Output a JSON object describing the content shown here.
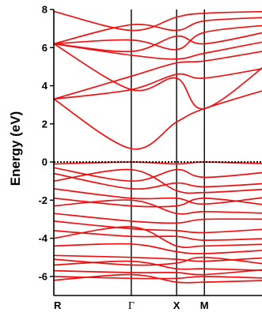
{
  "chart_data": {
    "type": "line",
    "title": "",
    "xlabel": "",
    "ylabel": "Energy (eV)",
    "ylim": [
      -7,
      8
    ],
    "yticks": [
      -6,
      -4,
      -2,
      0,
      2,
      4,
      6,
      8
    ],
    "ytick_labels": [
      "-6",
      "-4",
      "-2",
      "0",
      "2",
      "4",
      "6",
      "8"
    ],
    "kpoint_labels": [
      "R",
      "Γ",
      "X",
      "M"
    ],
    "kpoint_positions": [
      0,
      0.53,
      0.84,
      1.03
    ],
    "xlim": [
      0,
      1.5
    ],
    "fermi_level": 0,
    "line_color": "#ee1111",
    "fermi_line_style": "dotted",
    "series": [
      {
        "x": [
          0,
          0.53,
          0.84,
          1.03,
          1.5
        ],
        "y": [
          3.3,
          0.7,
          2.1,
          2.8,
          3.9
        ]
      },
      {
        "x": [
          0,
          0.53,
          0.84,
          1.03,
          1.5
        ],
        "y": [
          3.3,
          3.8,
          4.6,
          4.4,
          5.0
        ]
      },
      {
        "x": [
          0,
          0.53,
          0.84,
          1.03,
          1.5
        ],
        "y": [
          3.3,
          4.5,
          5.2,
          5.3,
          5.9
        ]
      },
      {
        "x": [
          0,
          0.53,
          0.84,
          1.03,
          1.5
        ],
        "y": [
          6.2,
          3.8,
          4.4,
          2.8,
          5.4
        ]
      },
      {
        "x": [
          0,
          0.53,
          0.84,
          1.03,
          1.5
        ],
        "y": [
          6.2,
          5.6,
          5.4,
          5.7,
          6.4
        ]
      },
      {
        "x": [
          0,
          0.53,
          0.84,
          1.03,
          1.5
        ],
        "y": [
          6.2,
          5.8,
          6.6,
          6.2,
          6.9
        ]
      },
      {
        "x": [
          0,
          0.53,
          0.84,
          1.03,
          1.5
        ],
        "y": [
          6.2,
          6.4,
          5.9,
          6.8,
          7.2
        ]
      },
      {
        "x": [
          0,
          0.53,
          0.84,
          1.03,
          1.5
        ],
        "y": [
          6.2,
          7.2,
          6.9,
          7.4,
          7.6
        ]
      },
      {
        "x": [
          0,
          0.53,
          0.84,
          1.03,
          1.5
        ],
        "y": [
          7.9,
          6.9,
          7.6,
          7.8,
          7.9
        ]
      },
      {
        "x": [
          0,
          0.53,
          0.84,
          1.03,
          1.5
        ],
        "y": [
          -0.1,
          0.0,
          -0.1,
          0.0,
          -0.1
        ]
      },
      {
        "x": [
          0,
          0.53,
          0.84,
          1.03,
          1.5
        ],
        "y": [
          -0.3,
          -1.0,
          -0.4,
          -0.8,
          -0.5
        ]
      },
      {
        "x": [
          0,
          0.53,
          0.84,
          1.03,
          1.5
        ],
        "y": [
          -0.6,
          -1.4,
          -1.1,
          -1.3,
          -1.1
        ]
      },
      {
        "x": [
          0,
          0.53,
          0.84,
          1.03,
          1.5
        ],
        "y": [
          -1.0,
          -0.4,
          -1.5,
          -1.6,
          -1.4
        ]
      },
      {
        "x": [
          0,
          0.53,
          0.84,
          1.03,
          1.5
        ],
        "y": [
          -1.4,
          -1.9,
          -1.9,
          -2.2,
          -1.8
        ]
      },
      {
        "x": [
          0,
          0.53,
          0.84,
          1.03,
          1.5
        ],
        "y": [
          -1.9,
          -2.3,
          -2.3,
          -1.9,
          -2.3
        ]
      },
      {
        "x": [
          0,
          0.53,
          0.84,
          1.03,
          1.5
        ],
        "y": [
          -2.3,
          -2.0,
          -2.7,
          -2.6,
          -2.7
        ]
      },
      {
        "x": [
          0,
          0.53,
          0.84,
          1.03,
          1.5
        ],
        "y": [
          -2.7,
          -3.1,
          -3.2,
          -3.0,
          -3.0
        ]
      },
      {
        "x": [
          0,
          0.53,
          0.84,
          1.03,
          1.5
        ],
        "y": [
          -3.1,
          -3.5,
          -3.6,
          -3.7,
          -3.5
        ]
      },
      {
        "x": [
          0,
          0.53,
          0.84,
          1.03,
          1.5
        ],
        "y": [
          -3.6,
          -3.9,
          -3.9,
          -4.1,
          -4.0
        ]
      },
      {
        "x": [
          0,
          0.53,
          0.84,
          1.03,
          1.5
        ],
        "y": [
          -4.0,
          -3.4,
          -4.4,
          -4.4,
          -4.3
        ]
      },
      {
        "x": [
          0,
          0.53,
          0.84,
          1.03,
          1.5
        ],
        "y": [
          -4.4,
          -4.3,
          -4.7,
          -4.8,
          -4.6
        ]
      },
      {
        "x": [
          0,
          0.53,
          0.84,
          1.03,
          1.5
        ],
        "y": [
          -4.9,
          -5.0,
          -5.1,
          -5.2,
          -5.0
        ]
      },
      {
        "x": [
          0,
          0.53,
          0.84,
          1.03,
          1.5
        ],
        "y": [
          -5.1,
          -5.4,
          -5.3,
          -5.0,
          -5.4
        ]
      },
      {
        "x": [
          0,
          0.53,
          0.84,
          1.03,
          1.5
        ],
        "y": [
          -5.4,
          -5.2,
          -5.6,
          -5.6,
          -5.7
        ]
      },
      {
        "x": [
          0,
          0.53,
          0.84,
          1.03,
          1.5
        ],
        "y": [
          -5.7,
          -5.8,
          -5.8,
          -5.9,
          -5.6
        ]
      },
      {
        "x": [
          0,
          0.53,
          0.84,
          1.03,
          1.5
        ],
        "y": [
          -6.0,
          -6.1,
          -6.1,
          -6.0,
          -6.1
        ]
      },
      {
        "x": [
          0,
          0.53,
          0.84,
          1.03,
          1.5
        ],
        "y": [
          -6.2,
          -5.9,
          -6.3,
          -6.3,
          -6.2
        ]
      }
    ]
  }
}
